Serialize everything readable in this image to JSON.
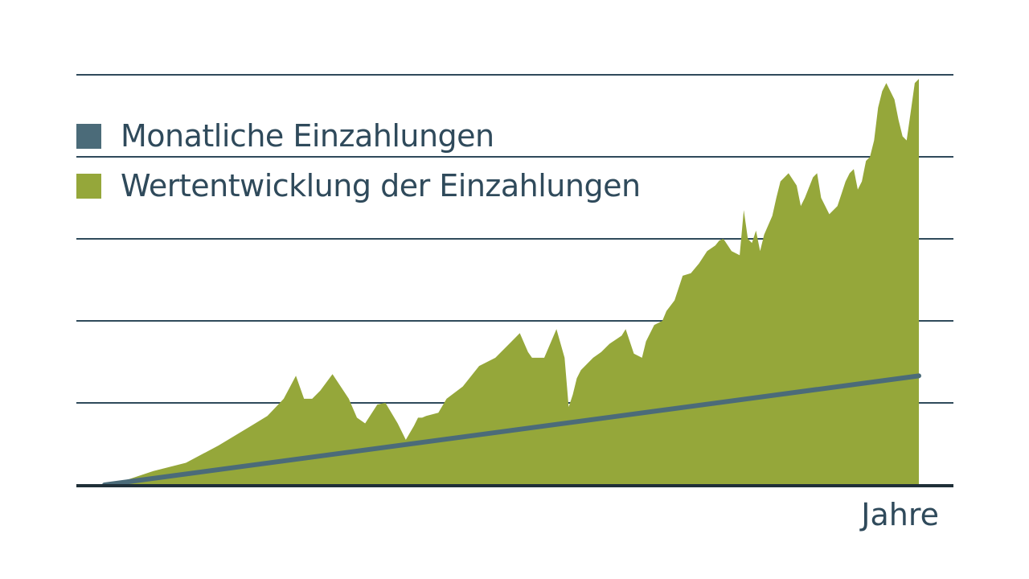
{
  "chart_data": {
    "type": "area",
    "title": "",
    "xlabel": "Jahre",
    "ylabel": "",
    "xlim": [
      0,
      1
    ],
    "ylim": [
      0,
      5
    ],
    "grid": true,
    "legend": "top-left",
    "gridlines_y": [
      1,
      2,
      3,
      4,
      5
    ],
    "series": [
      {
        "name": "Monatliche Einzahlungen",
        "kind": "line",
        "color": "#4b6b79",
        "x": [
          0,
          1
        ],
        "y": [
          0.0,
          1.33
        ]
      },
      {
        "name": "Wertentwicklung der Einzahlungen",
        "kind": "area",
        "color": "#95a73a",
        "x": [
          0.0,
          0.03,
          0.06,
          0.1,
          0.14,
          0.18,
          0.2,
          0.22,
          0.235,
          0.245,
          0.255,
          0.265,
          0.28,
          0.3,
          0.31,
          0.32,
          0.335,
          0.345,
          0.36,
          0.37,
          0.38,
          0.385,
          0.39,
          0.395,
          0.41,
          0.42,
          0.44,
          0.46,
          0.48,
          0.5,
          0.51,
          0.52,
          0.525,
          0.54,
          0.555,
          0.565,
          0.57,
          0.575,
          0.58,
          0.585,
          0.6,
          0.61,
          0.62,
          0.635,
          0.64,
          0.65,
          0.66,
          0.665,
          0.675,
          0.685,
          0.69,
          0.7,
          0.71,
          0.72,
          0.73,
          0.74,
          0.75,
          0.755,
          0.76,
          0.77,
          0.78,
          0.785,
          0.79,
          0.795,
          0.8,
          0.805,
          0.81,
          0.82,
          0.825,
          0.83,
          0.84,
          0.85,
          0.855,
          0.86,
          0.87,
          0.875,
          0.88,
          0.89,
          0.9,
          0.905,
          0.91,
          0.915,
          0.92,
          0.925,
          0.93,
          0.935,
          0.94,
          0.945,
          0.95,
          0.955,
          0.96,
          0.965,
          0.97,
          0.975,
          0.98,
          0.985,
          0.99,
          0.995,
          1.0
        ],
        "y": [
          0.0,
          0.07,
          0.17,
          0.27,
          0.48,
          0.72,
          0.84,
          1.05,
          1.33,
          1.05,
          1.05,
          1.15,
          1.35,
          1.05,
          0.82,
          0.75,
          0.98,
          1.0,
          0.75,
          0.55,
          0.72,
          0.82,
          0.82,
          0.84,
          0.88,
          1.05,
          1.2,
          1.45,
          1.55,
          1.75,
          1.85,
          1.62,
          1.55,
          1.55,
          1.9,
          1.55,
          0.95,
          1.1,
          1.3,
          1.4,
          1.55,
          1.62,
          1.72,
          1.82,
          1.9,
          1.6,
          1.55,
          1.75,
          1.95,
          2.0,
          2.12,
          2.25,
          2.55,
          2.58,
          2.7,
          2.85,
          2.92,
          2.98,
          3.0,
          2.85,
          2.8,
          3.35,
          3.0,
          2.95,
          3.1,
          2.85,
          3.05,
          3.28,
          3.5,
          3.7,
          3.8,
          3.65,
          3.4,
          3.5,
          3.75,
          3.8,
          3.5,
          3.3,
          3.4,
          3.55,
          3.7,
          3.8,
          3.85,
          3.6,
          3.7,
          3.95,
          4.0,
          4.2,
          4.6,
          4.8,
          4.9,
          4.8,
          4.7,
          4.45,
          4.25,
          4.2,
          4.55,
          4.9,
          4.95
        ]
      }
    ]
  },
  "legend": {
    "items": [
      {
        "label": "Monatliche Einzahlungen",
        "color": "#4b6b79"
      },
      {
        "label": "Wertentwicklung der Einzahlungen",
        "color": "#95a73a"
      }
    ]
  },
  "axis": {
    "x_label": "Jahre"
  },
  "colors": {
    "grid": "#2f4a5b",
    "text": "#2f4a5b"
  }
}
